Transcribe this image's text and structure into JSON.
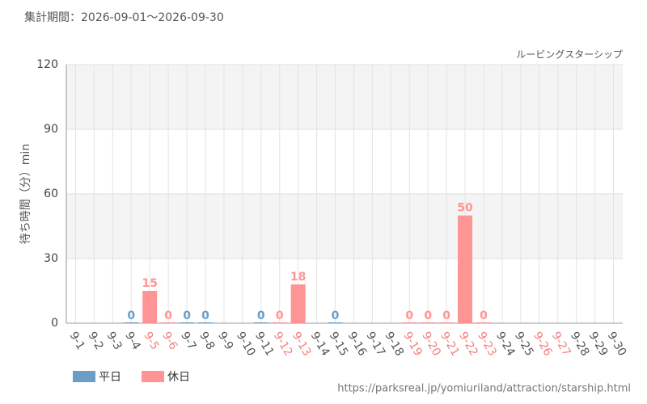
{
  "chart_data": {
    "type": "bar",
    "header": "集計期間：2026-09-01～2026-09-30",
    "subtitle": "ルービングスターシップ",
    "y_label": "待ち時間（分）min",
    "source": "https://parksreal.jp/yomiuriland/attraction/starship.html",
    "categories": [
      "9-1",
      "9-2",
      "9-3",
      "9-4",
      "9-5",
      "9-6",
      "9-7",
      "9-8",
      "9-9",
      "9-10",
      "9-11",
      "9-12",
      "9-13",
      "9-14",
      "9-15",
      "9-16",
      "9-17",
      "9-18",
      "9-19",
      "9-20",
      "9-21",
      "9-22",
      "9-23",
      "9-24",
      "9-25",
      "9-26",
      "9-27",
      "9-28",
      "9-29",
      "9-30"
    ],
    "category_label_colors": [
      "#555",
      "#555",
      "#555",
      "#555",
      "#f08080",
      "#f08080",
      "#555",
      "#555",
      "#555",
      "#555",
      "#555",
      "#f08080",
      "#f08080",
      "#555",
      "#555",
      "#555",
      "#555",
      "#555",
      "#f08080",
      "#f08080",
      "#f08080",
      "#f08080",
      "#f08080",
      "#555",
      "#555",
      "#f08080",
      "#f08080",
      "#555",
      "#555",
      "#555"
    ],
    "series": [
      {
        "name": "平日",
        "color": "#6a9ec7",
        "values": [
          null,
          null,
          null,
          0,
          null,
          null,
          0,
          0,
          null,
          null,
          0,
          null,
          null,
          null,
          0,
          null,
          null,
          null,
          null,
          null,
          null,
          null,
          null,
          null,
          null,
          null,
          null,
          null,
          null,
          null
        ]
      },
      {
        "name": "休日",
        "color": "#ff9494",
        "values": [
          null,
          null,
          null,
          null,
          15,
          0,
          null,
          null,
          null,
          null,
          null,
          0,
          18,
          null,
          null,
          null,
          null,
          null,
          0,
          0,
          0,
          50,
          0,
          null,
          null,
          null,
          null,
          null,
          null,
          null
        ]
      }
    ],
    "ylim": [
      0,
      120
    ],
    "yticks": [
      0,
      30,
      60,
      90,
      120
    ],
    "grid": true
  }
}
